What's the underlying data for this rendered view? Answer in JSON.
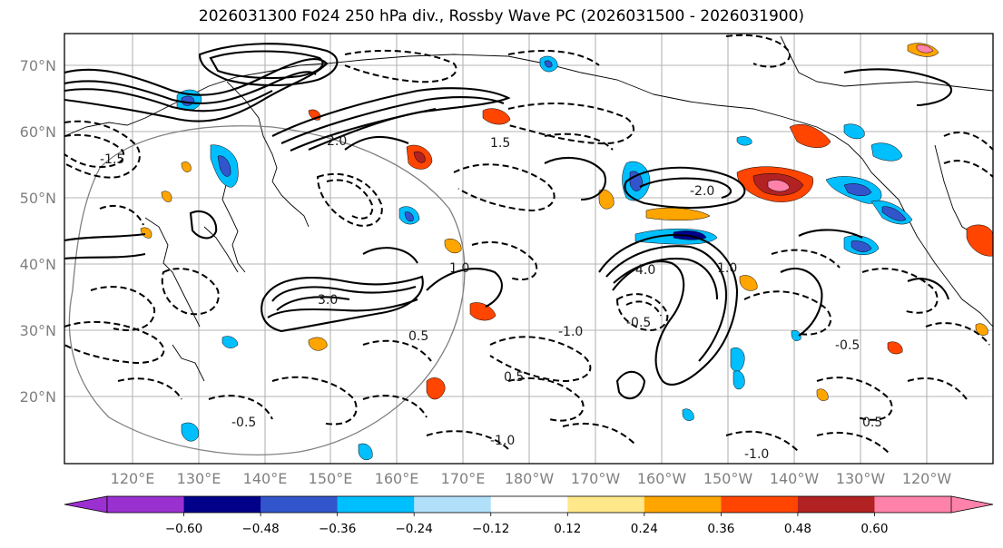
{
  "title": "2026031300 F024 250 hPa div., Rossby Wave PC (2026031500 - 2026031900)",
  "map": {
    "lat_labels": [
      "70°N",
      "60°N",
      "50°N",
      "40°N",
      "30°N",
      "20°N"
    ],
    "lon_labels": [
      "120°E",
      "130°E",
      "140°E",
      "150°E",
      "160°E",
      "170°E",
      "180°W",
      "170°W",
      "160°W",
      "150°W",
      "140°W",
      "130°W",
      "120°W"
    ],
    "contour_labels": [
      "-1.0",
      "-0.5",
      "0.5",
      "1.0",
      "-1.5",
      "2.0",
      "-2.0",
      "3.0",
      "4.0",
      "-1.0",
      "0.5",
      "-0.5",
      "1.0",
      "-1.0",
      "-0.5",
      "0.5",
      "1.5"
    ]
  },
  "colorbar": {
    "ticks": [
      "−0.60",
      "−0.48",
      "−0.36",
      "−0.24",
      "−0.12",
      "0.12",
      "0.24",
      "0.36",
      "0.48",
      "0.60"
    ],
    "colors": [
      "#9b30d0",
      "#000089",
      "#3355cc",
      "#00bfff",
      "#b0e0fa",
      "#ffffff",
      "#ffe88a",
      "#ffa500",
      "#ff4500",
      "#b22222",
      "#ff82ab"
    ]
  },
  "colors": {
    "frame": "#000000",
    "grid": "#b4b4b4",
    "coast": "#000000",
    "ring": "#808080"
  }
}
